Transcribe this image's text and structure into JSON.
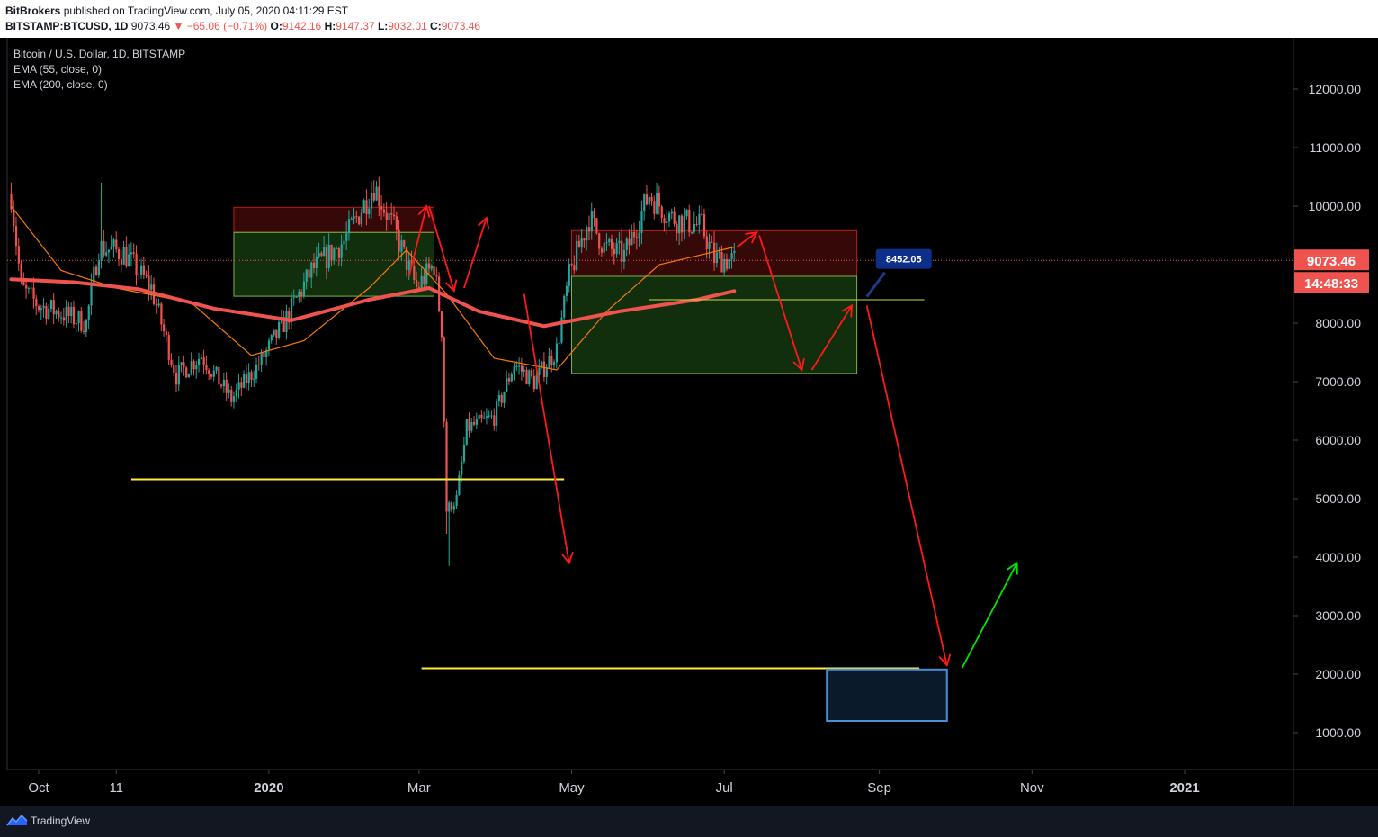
{
  "header": {
    "author": "BitBrokers",
    "published": "published on TradingView.com, July 05, 2020 04:11:29 EST",
    "symbol": "BITSTAMP:BTCUSD, 1D",
    "last": "9073.46",
    "change": "▼ −65.06 (−0.71%)",
    "o_label": "O:",
    "o": "9142.16",
    "h_label": "H:",
    "h": "9147.37",
    "l_label": "L:",
    "l": "9032.01",
    "c_label": "C:",
    "c": "9073.46"
  },
  "legend": {
    "title": "Bitcoin / U.S. Dollar, 1D, BITSTAMP",
    "ema1": "EMA (55, close, 0)",
    "ema2": "EMA (200, close, 0)"
  },
  "footer": {
    "brand": "TradingView"
  },
  "colors": {
    "up": "#26a69a",
    "down": "#ef5350",
    "ema55": "#f57c00",
    "ema200": "#ef5350",
    "arrow": "#ff1a1a",
    "target_arrow": "#00e600",
    "support": "#ffeb3b"
  },
  "chart_data": {
    "type": "candlestick",
    "title": "Bitcoin / U.S. Dollar, 1D, BITSTAMP",
    "ylim": [
      0,
      12900
    ],
    "xlim": [
      "2019-09-19",
      "2021-03-01"
    ],
    "y_ticks": [
      "12000.00",
      "11000.00",
      "10000.00",
      "8000.00",
      "7000.00",
      "6000.00",
      "5000.00",
      "4000.00",
      "3000.00",
      "2000.00",
      "1000.00"
    ],
    "x_ticks": [
      {
        "label": "Oct",
        "date": "2019-10-01"
      },
      {
        "label": "11",
        "date": "2019-11-01"
      },
      {
        "label": "2020",
        "date": "2020-01-01"
      },
      {
        "label": "Mar",
        "date": "2020-03-01"
      },
      {
        "label": "May",
        "date": "2020-05-01"
      },
      {
        "label": "Jul",
        "date": "2020-07-01"
      },
      {
        "label": "Sep",
        "date": "2020-09-01"
      },
      {
        "label": "Nov",
        "date": "2020-11-01"
      },
      {
        "label": "2021",
        "date": "2021-01-01"
      }
    ],
    "price_label": "9073.46",
    "countdown_label": "14:48:33",
    "price_anchors": [
      [
        "2019-09-20",
        10200
      ],
      [
        "2019-09-24",
        8600
      ],
      [
        "2019-10-01",
        8300
      ],
      [
        "2019-10-08",
        8200
      ],
      [
        "2019-10-20",
        8000
      ],
      [
        "2019-10-25",
        9300
      ],
      [
        "2019-11-04",
        9200
      ],
      [
        "2019-11-15",
        8600
      ],
      [
        "2019-11-25",
        7100
      ],
      [
        "2019-12-05",
        7450
      ],
      [
        "2019-12-17",
        6700
      ],
      [
        "2019-12-28",
        7300
      ],
      [
        "2020-01-07",
        8000
      ],
      [
        "2020-01-18",
        8900
      ],
      [
        "2020-01-31",
        9400
      ],
      [
        "2020-02-12",
        10350
      ],
      [
        "2020-02-20",
        9600
      ],
      [
        "2020-02-29",
        8600
      ],
      [
        "2020-03-07",
        9000
      ],
      [
        "2020-03-10",
        7900
      ],
      [
        "2020-03-12",
        4800
      ],
      [
        "2020-03-16",
        5000
      ],
      [
        "2020-03-20",
        6200
      ],
      [
        "2020-03-31",
        6400
      ],
      [
        "2020-04-08",
        7300
      ],
      [
        "2020-04-16",
        7000
      ],
      [
        "2020-04-25",
        7550
      ],
      [
        "2020-04-30",
        8800
      ],
      [
        "2020-05-08",
        9800
      ],
      [
        "2020-05-14",
        9300
      ],
      [
        "2020-05-22",
        9150
      ],
      [
        "2020-06-01",
        10200
      ],
      [
        "2020-06-10",
        9800
      ],
      [
        "2020-06-22",
        9650
      ],
      [
        "2020-06-27",
        9100
      ],
      [
        "2020-07-05",
        9073
      ]
    ],
    "events": [
      {
        "date": "2019-10-26",
        "high": 10400
      },
      {
        "date": "2020-03-13",
        "low": 3850
      },
      {
        "date": "2020-03-12",
        "low": 4400
      }
    ],
    "ema55": [
      [
        "2019-09-20",
        10000
      ],
      [
        "2019-10-10",
        8900
      ],
      [
        "2019-11-01",
        8600
      ],
      [
        "2019-12-01",
        8350
      ],
      [
        "2019-12-25",
        7450
      ],
      [
        "2020-01-15",
        7700
      ],
      [
        "2020-02-10",
        8600
      ],
      [
        "2020-02-25",
        9250
      ],
      [
        "2020-03-12",
        8500
      ],
      [
        "2020-03-31",
        7400
      ],
      [
        "2020-04-25",
        7200
      ],
      [
        "2020-05-15",
        8200
      ],
      [
        "2020-06-05",
        9000
      ],
      [
        "2020-07-05",
        9300
      ]
    ],
    "ema200": [
      [
        "2019-09-20",
        8750
      ],
      [
        "2019-10-15",
        8700
      ],
      [
        "2019-11-10",
        8580
      ],
      [
        "2019-12-10",
        8250
      ],
      [
        "2020-01-10",
        8050
      ],
      [
        "2020-02-10",
        8400
      ],
      [
        "2020-03-05",
        8600
      ],
      [
        "2020-03-25",
        8200
      ],
      [
        "2020-04-20",
        7950
      ],
      [
        "2020-05-20",
        8200
      ],
      [
        "2020-06-20",
        8400
      ],
      [
        "2020-07-05",
        8550
      ]
    ],
    "zones": [
      {
        "x1": "2019-12-18",
        "x2": "2020-03-07",
        "y_top": 9980,
        "y_mid": 9550,
        "y_bot": 8460
      },
      {
        "x1": "2020-05-01",
        "x2": "2020-08-23",
        "y_top": 9580,
        "y_mid": 8800,
        "y_bot": 7140
      }
    ],
    "support_lines": [
      {
        "x1": "2019-11-07",
        "x2": "2020-04-28",
        "y": 5330
      },
      {
        "x1": "2020-03-02",
        "x2": "2020-09-17",
        "y": 2100
      }
    ],
    "target_box": {
      "x1": "2020-08-11",
      "x2": "2020-09-28",
      "y1": 2080,
      "y2": 1200
    },
    "level_line": {
      "x1": "2020-06-01",
      "x2": "2020-09-19",
      "y": 8400
    },
    "level_callout": {
      "label": "8452.05",
      "date": "2020-08-27",
      "y": 8452.05
    },
    "arrows": [
      {
        "path": [
          [
            "2020-02-26",
            8800
          ],
          [
            "2020-03-04",
            10000
          ]
        ],
        "color": "arrow"
      },
      {
        "path": [
          [
            "2020-03-05",
            10000
          ],
          [
            "2020-03-15",
            8550
          ]
        ],
        "color": "arrow"
      },
      {
        "path": [
          [
            "2020-03-19",
            8600
          ],
          [
            "2020-03-28",
            9800
          ]
        ],
        "color": "arrow"
      },
      {
        "path": [
          [
            "2020-04-12",
            8500
          ],
          [
            "2020-04-30",
            3900
          ]
        ],
        "color": "arrow"
      },
      {
        "path": [
          [
            "2020-07-06",
            9300
          ],
          [
            "2020-07-14",
            9550
          ]
        ],
        "color": "arrow"
      },
      {
        "path": [
          [
            "2020-07-15",
            9500
          ],
          [
            "2020-08-01",
            7200
          ]
        ],
        "color": "arrow"
      },
      {
        "path": [
          [
            "2020-08-05",
            7200
          ],
          [
            "2020-08-21",
            8300
          ]
        ],
        "color": "arrow"
      },
      {
        "path": [
          [
            "2020-08-27",
            8300
          ],
          [
            "2020-09-28",
            2150
          ]
        ],
        "color": "arrow"
      },
      {
        "path": [
          [
            "2020-10-04",
            2100
          ],
          [
            "2020-10-26",
            3900
          ]
        ],
        "color": "target_arrow"
      }
    ]
  }
}
